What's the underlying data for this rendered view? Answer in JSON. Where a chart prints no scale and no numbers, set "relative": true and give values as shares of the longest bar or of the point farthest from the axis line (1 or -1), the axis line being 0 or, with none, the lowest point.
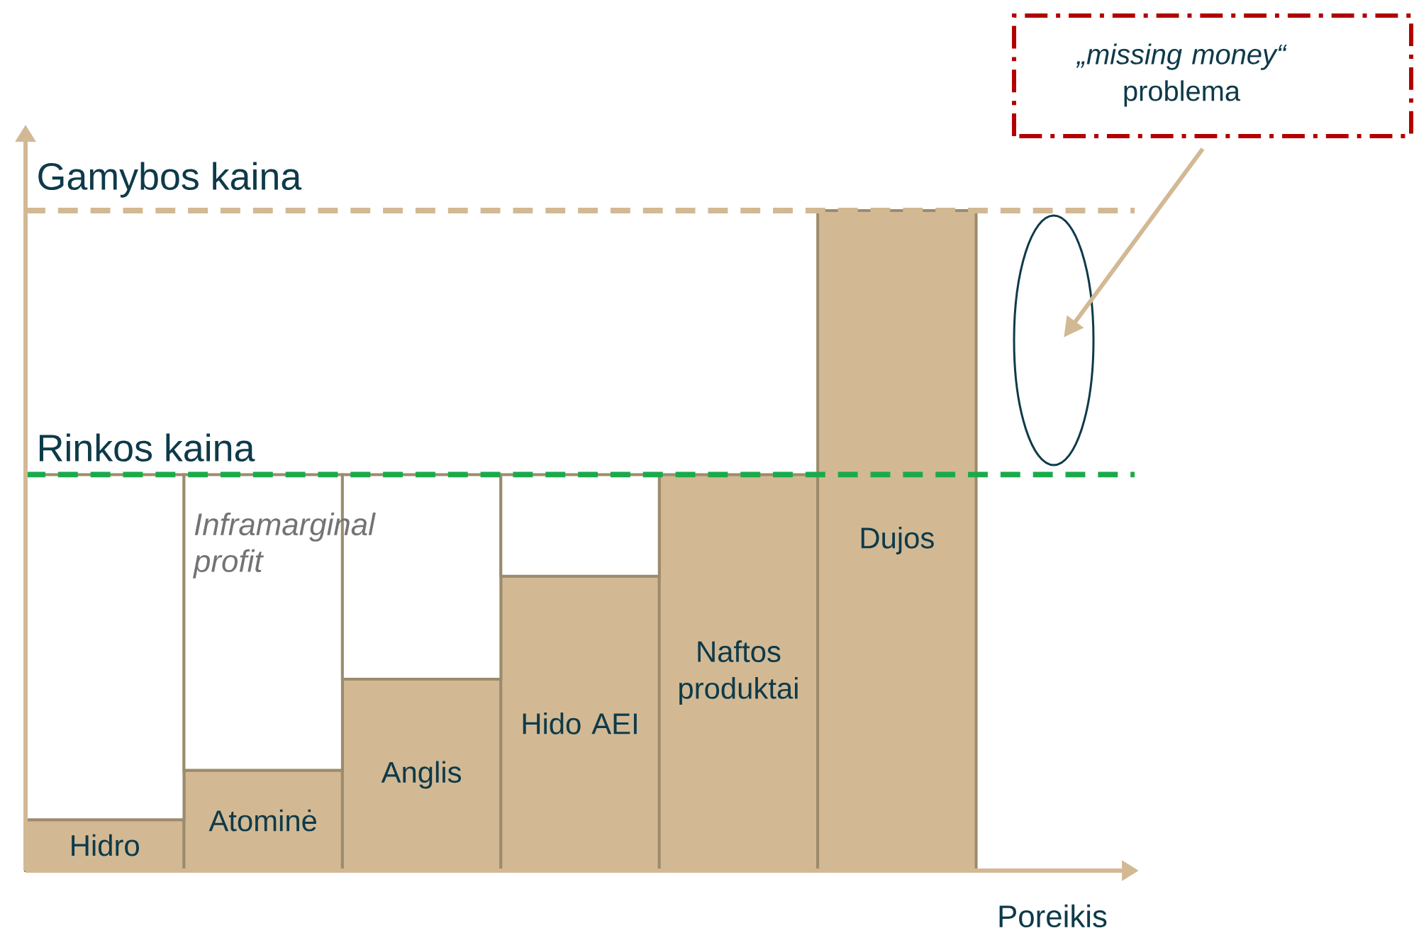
{
  "chart_data": {
    "type": "bar",
    "stacked": true,
    "categories": [
      "Hidro",
      "Atominė",
      "Anglis",
      "Hido AEI",
      "Naftos produktai",
      "Dujos"
    ],
    "xlabel": "Poreikis",
    "series": [
      {
        "color": "#d2b994",
        "values": [
          0.077,
          0.152,
          0.29,
          0.446,
          0.6,
          1.0
        ]
      },
      {
        "color": "#ffffff",
        "values": [
          0.523,
          0.448,
          0.31,
          0.154,
          null,
          null
        ]
      }
    ],
    "ref_lines": [
      {
        "axis": "y",
        "value": 1.0,
        "label": "Gamybos kaina",
        "color": "#d2b994",
        "line_style": "dashed"
      },
      {
        "axis": "y",
        "value": 0.6,
        "label": "Rinkos kaina",
        "color": "#1aaa4a",
        "line_style": "dashed"
      }
    ],
    "annotations": [
      "*Inframarginal profit*",
      "*„missing money“* problema"
    ],
    "relative": true
  }
}
